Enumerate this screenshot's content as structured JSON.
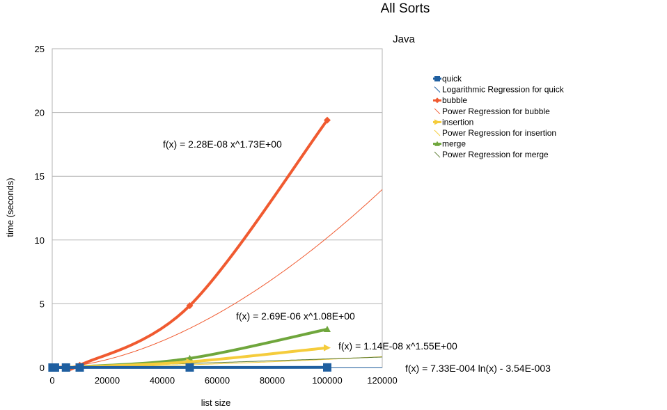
{
  "chart_data": {
    "type": "line",
    "title": "All Sorts",
    "subtitle": "Java",
    "xlabel": "list size",
    "ylabel": "time (seconds)",
    "xlim": [
      0,
      120000
    ],
    "ylim": [
      0,
      25
    ],
    "x_ticks": [
      0,
      20000,
      40000,
      60000,
      80000,
      100000,
      120000
    ],
    "y_ticks": [
      0,
      5,
      10,
      15,
      20,
      25
    ],
    "grid": "horizontal",
    "legend_position": "right",
    "x": [
      100,
      1000,
      5000,
      10000,
      50000,
      100000
    ],
    "series": [
      {
        "name": "quick",
        "color": "#1f5fa0",
        "marker": "square",
        "values": [
          0.0,
          0.0,
          0.002,
          0.003,
          0.005,
          0.01
        ]
      },
      {
        "name": "bubble",
        "color": "#f05a30",
        "marker": "diamond",
        "values": [
          0.0,
          0.0,
          0.05,
          0.18,
          4.85,
          19.4
        ]
      },
      {
        "name": "insertion",
        "color": "#f5cc3c",
        "marker": "arrow",
        "values": [
          0.0,
          0.0,
          0.02,
          0.05,
          0.45,
          1.55
        ]
      },
      {
        "name": "merge",
        "color": "#6fa63c",
        "marker": "triangle",
        "values": [
          0.0,
          0.0,
          0.03,
          0.06,
          0.72,
          3.0
        ]
      }
    ],
    "trendlines": [
      {
        "name": "Logarithmic Regression for quick",
        "for": "quick",
        "kind": "log",
        "a": 0.000733,
        "b": -0.00354,
        "color": "#1f5fa0",
        "equation": "f(x) = 7.33E-004 ln(x) - 3.54E-003"
      },
      {
        "name": "Power Regression for bubble",
        "for": "bubble",
        "kind": "power",
        "a": 2.28e-08,
        "b": 1.73,
        "color": "#f05a30",
        "equation": "f(x) = 2.28E-08 x^1.73E+00"
      },
      {
        "name": "Power Regression for insertion",
        "for": "insertion",
        "kind": "power",
        "a": 1.14e-08,
        "b": 1.55,
        "color": "#f5cc3c",
        "equation": "f(x) = 1.14E-08 x^1.55E+00"
      },
      {
        "name": "Power Regression for merge",
        "for": "merge",
        "kind": "power",
        "a": 2.69e-06,
        "b": 1.08,
        "color": "#5a7a30",
        "equation": "f(x) = 2.69E-06 x^1.08E+00"
      }
    ],
    "legend": [
      {
        "label": "quick",
        "color": "#1f5fa0",
        "style": "series",
        "marker": "square"
      },
      {
        "label": "Logarithmic Regression for quick",
        "color": "#1f5fa0",
        "style": "trend"
      },
      {
        "label": "bubble",
        "color": "#f05a30",
        "style": "series",
        "marker": "diamond"
      },
      {
        "label": "Power Regression for bubble",
        "color": "#f05a30",
        "style": "trend"
      },
      {
        "label": "insertion",
        "color": "#f5cc3c",
        "style": "series",
        "marker": "arrow"
      },
      {
        "label": "Power Regression for insertion",
        "color": "#f5cc3c",
        "style": "trend"
      },
      {
        "label": "merge",
        "color": "#6fa63c",
        "style": "series",
        "marker": "triangle"
      },
      {
        "label": "Power Regression for merge",
        "color": "#5a7a30",
        "style": "trend"
      }
    ]
  }
}
